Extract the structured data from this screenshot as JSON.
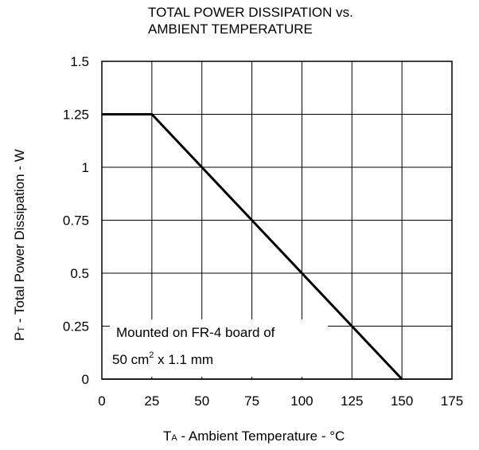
{
  "chart_data": {
    "type": "line",
    "title_line1": "TOTAL POWER DISSIPATION vs.",
    "title_line2": "AMBIENT TEMPERATURE",
    "ylabel": {
      "main": "P",
      "sub": "T",
      "rest": " - Total Power Dissipation - W"
    },
    "xlabel": {
      "main": "T",
      "sub": "A",
      "rest": " - Ambient Temperature - °C"
    },
    "xlim": [
      0,
      175
    ],
    "ylim": [
      0,
      1.5
    ],
    "x_ticks": [
      0,
      25,
      50,
      75,
      100,
      125,
      150,
      175
    ],
    "x_tick_labels": [
      "0",
      "25",
      "50",
      "75",
      "100",
      "125",
      "150",
      "175"
    ],
    "y_ticks": [
      0,
      0.25,
      0.5,
      0.75,
      1,
      1.25,
      1.5
    ],
    "y_tick_labels": [
      "0",
      "0.25",
      "0.5",
      "0.75",
      "1",
      "1.25",
      "1.5"
    ],
    "grid": true,
    "series": [
      {
        "x": [
          0,
          25,
          150
        ],
        "y": [
          1.25,
          1.25,
          0
        ]
      }
    ],
    "annotation": {
      "line1": "Mounted on FR-4 board of",
      "line2_pre": "50 cm",
      "line2_sup": "2",
      "line2_post": " x 1.1 mm"
    }
  }
}
